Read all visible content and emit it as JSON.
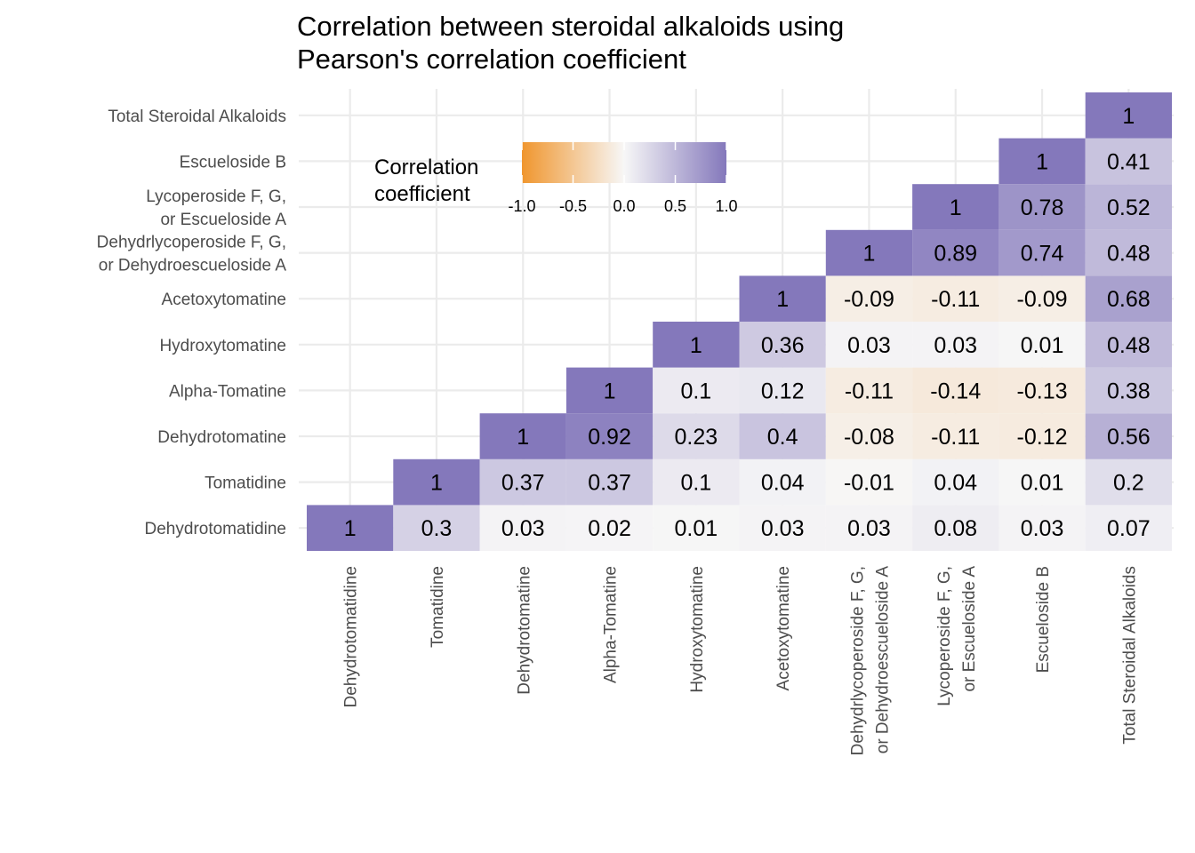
{
  "chart_data": {
    "type": "heatmap",
    "title": [
      "Correlation between steroidal alkaloids using",
      "Pearson's correlation coefficient"
    ],
    "xlabel": "",
    "ylabel": "",
    "variables": [
      [
        "Dehydrotomatidine"
      ],
      [
        "Tomatidine"
      ],
      [
        "Dehydrotomatine"
      ],
      [
        "Alpha-Tomatine"
      ],
      [
        "Hydroxytomatine"
      ],
      [
        "Acetoxytomatine"
      ],
      [
        "Dehydrlycoperoside F, G,",
        "or Dehydroescueloside A"
      ],
      [
        "Lycoperoside F, G,",
        "or Escueloside A"
      ],
      [
        "Escueloside B"
      ],
      [
        "Total Steroidal Alkaloids"
      ]
    ],
    "matrix_lower_triangle_by_row": [
      [
        "1"
      ],
      [
        "0.3",
        "1"
      ],
      [
        "0.03",
        "0.37",
        "1"
      ],
      [
        "0.02",
        "0.37",
        "0.92",
        "1"
      ],
      [
        "0.01",
        "0.1",
        "0.23",
        "0.1",
        "1"
      ],
      [
        "0.03",
        "0.04",
        "0.4",
        "0.12",
        "0.36",
        "1"
      ],
      [
        "0.03",
        "-0.01",
        "-0.08",
        "-0.11",
        "0.03",
        "-0.09",
        "1"
      ],
      [
        "0.08",
        "0.04",
        "-0.11",
        "-0.14",
        "0.03",
        "-0.11",
        "0.89",
        "1"
      ],
      [
        "0.03",
        "0.01",
        "-0.12",
        "-0.13",
        "0.01",
        "-0.09",
        "0.74",
        "0.78",
        "1"
      ],
      [
        "0.07",
        "0.2",
        "0.56",
        "0.38",
        "0.48",
        "0.68",
        "0.48",
        "0.52",
        "0.41",
        "1"
      ]
    ],
    "color_scale": {
      "low": "#f0962e",
      "mid": "#f7f7f7",
      "high": "#8478bb",
      "limits": [
        -1,
        1
      ]
    },
    "legend": {
      "title": [
        "Correlation",
        "coefficient"
      ],
      "position": "top-left",
      "ticks": [
        "-1.0",
        "-0.5",
        "0.0",
        "0.5",
        "1.0"
      ]
    },
    "grid": true
  }
}
